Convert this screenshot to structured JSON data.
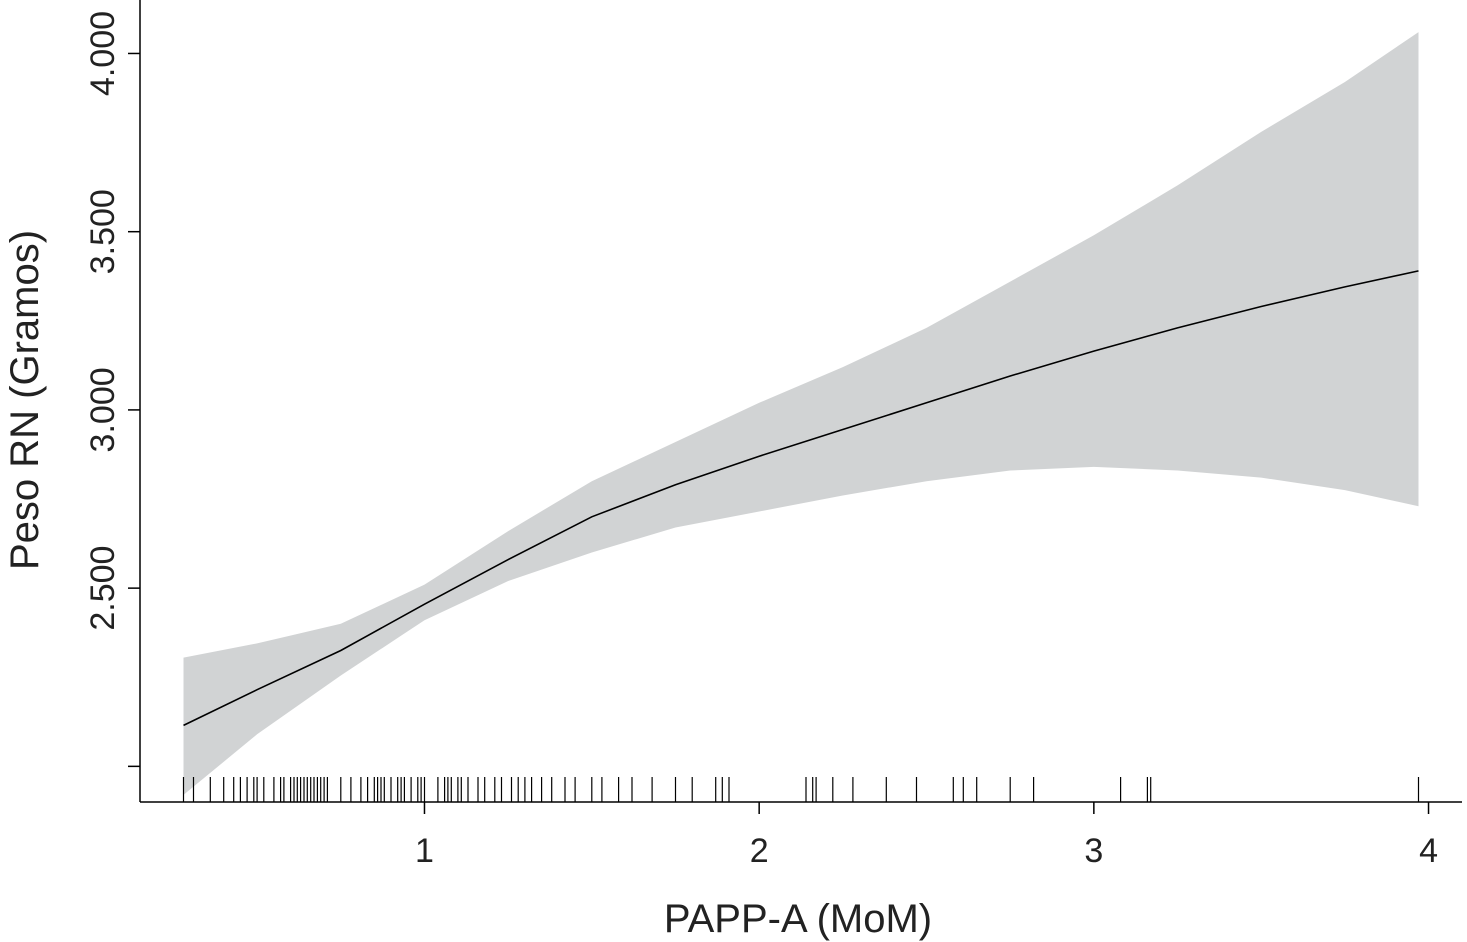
{
  "chart_data": {
    "type": "line",
    "xlabel": "PAPP-A (MoM)",
    "ylabel": "Peso RN (Gramos)",
    "xlim": [
      0.15,
      4.1
    ],
    "ylim": [
      1900,
      4150
    ],
    "x_ticks": [
      1,
      2,
      3,
      4
    ],
    "x_tick_labels": [
      "1",
      "2",
      "3",
      "4"
    ],
    "y_ticks": [
      2000,
      2500,
      3000,
      3500,
      4000
    ],
    "y_tick_labels": [
      "",
      "2.500",
      "3.000",
      "3.500",
      "4.000"
    ],
    "grid": false,
    "legend": "none",
    "band_color": "#d1d3d4",
    "line_color": "#000000",
    "fit": {
      "x": [
        0.28,
        0.5,
        0.75,
        1.0,
        1.25,
        1.5,
        1.75,
        2.0,
        2.25,
        2.5,
        2.75,
        3.0,
        3.25,
        3.5,
        3.75,
        3.97
      ],
      "y": [
        2115,
        2215,
        2325,
        2455,
        2580,
        2700,
        2790,
        2870,
        2945,
        3020,
        3095,
        3165,
        3230,
        3290,
        3345,
        3390
      ]
    },
    "ci_upper": {
      "x": [
        0.28,
        0.5,
        0.75,
        1.0,
        1.25,
        1.5,
        1.75,
        2.0,
        2.25,
        2.5,
        2.75,
        3.0,
        3.25,
        3.5,
        3.75,
        3.97
      ],
      "y": [
        2305,
        2345,
        2400,
        2510,
        2660,
        2800,
        2910,
        3020,
        3120,
        3230,
        3360,
        3490,
        3630,
        3780,
        3920,
        4060
      ]
    },
    "ci_lower": {
      "x": [
        0.28,
        0.5,
        0.75,
        1.0,
        1.25,
        1.5,
        1.75,
        2.0,
        2.25,
        2.5,
        2.75,
        3.0,
        3.25,
        3.5,
        3.75,
        3.97
      ],
      "y": [
        1920,
        2090,
        2255,
        2410,
        2520,
        2600,
        2670,
        2715,
        2760,
        2800,
        2830,
        2840,
        2830,
        2810,
        2775,
        2730
      ]
    },
    "rug": [
      0.28,
      0.31,
      0.36,
      0.4,
      0.43,
      0.45,
      0.47,
      0.49,
      0.5,
      0.52,
      0.55,
      0.57,
      0.58,
      0.6,
      0.61,
      0.62,
      0.63,
      0.64,
      0.65,
      0.66,
      0.67,
      0.68,
      0.69,
      0.7,
      0.71,
      0.75,
      0.78,
      0.81,
      0.83,
      0.85,
      0.86,
      0.87,
      0.88,
      0.9,
      0.92,
      0.93,
      0.94,
      0.96,
      0.98,
      0.99,
      1.0,
      1.04,
      1.06,
      1.07,
      1.08,
      1.1,
      1.11,
      1.13,
      1.16,
      1.18,
      1.21,
      1.23,
      1.26,
      1.28,
      1.3,
      1.32,
      1.35,
      1.38,
      1.42,
      1.45,
      1.5,
      1.53,
      1.58,
      1.62,
      1.68,
      1.75,
      1.8,
      1.87,
      1.89,
      1.91,
      2.14,
      2.16,
      2.17,
      2.22,
      2.28,
      2.38,
      2.47,
      2.58,
      2.61,
      2.65,
      2.75,
      2.82,
      3.08,
      3.16,
      3.17,
      3.97
    ]
  }
}
